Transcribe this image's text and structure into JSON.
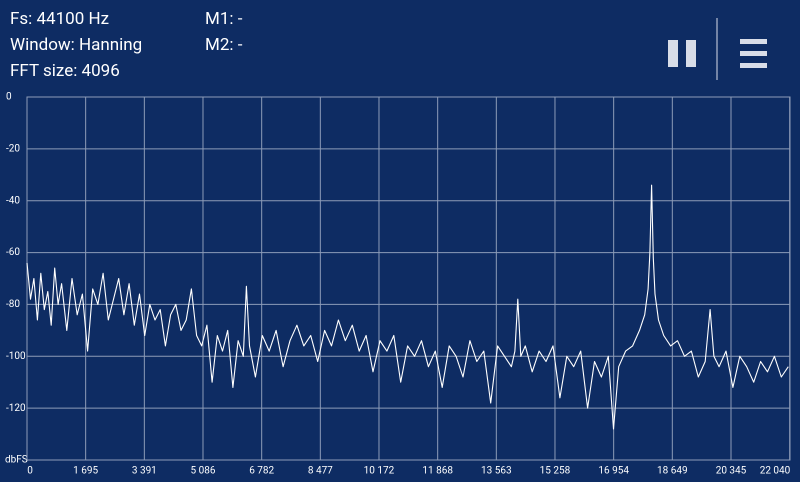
{
  "header": {
    "fs": "Fs: 44100 Hz",
    "window": "Window: Hanning",
    "fft_size": "FFT size: 4096",
    "m1": "M1: -",
    "m2": "M2: -"
  },
  "chart_data": {
    "type": "line",
    "ylabel": "dbFS",
    "color": "#ffffff",
    "grid": true,
    "xlim": [
      0,
      22050
    ],
    "ylim": [
      -140,
      0
    ],
    "xticks": [
      0,
      {
        "value": 1695,
        "label": "1 695"
      },
      {
        "value": 3391,
        "label": "3 391"
      },
      {
        "value": 5086,
        "label": "5 086"
      },
      {
        "value": 6782,
        "label": "6 782"
      },
      {
        "value": 8477,
        "label": "8 477"
      },
      {
        "value": 10172,
        "label": "10 172"
      },
      {
        "value": 11868,
        "label": "11 868"
      },
      {
        "value": 13563,
        "label": "13 563"
      },
      {
        "value": 15258,
        "label": "15 258"
      },
      {
        "value": 16954,
        "label": "16 954"
      },
      {
        "value": 18649,
        "label": "18 649"
      },
      {
        "value": 20345,
        "label": "20 345"
      },
      {
        "value": 22040,
        "label": "22 040"
      }
    ],
    "yticks": [
      0,
      -20,
      -40,
      -60,
      -80,
      -100,
      -120
    ],
    "x": [
      0,
      100,
      200,
      300,
      400,
      500,
      600,
      700,
      800,
      900,
      1000,
      1150,
      1300,
      1450,
      1600,
      1750,
      1900,
      2050,
      2200,
      2350,
      2500,
      2650,
      2800,
      2950,
      3100,
      3250,
      3400,
      3550,
      3700,
      3850,
      4000,
      4150,
      4300,
      4450,
      4600,
      4750,
      4900,
      5050,
      5200,
      5350,
      5500,
      5650,
      5800,
      5950,
      6100,
      6250,
      6340,
      6430,
      6600,
      6800,
      7000,
      7200,
      7400,
      7600,
      7800,
      8000,
      8200,
      8400,
      8600,
      8800,
      9000,
      9200,
      9400,
      9600,
      9800,
      10000,
      10200,
      10400,
      10600,
      10800,
      11000,
      11200,
      11400,
      11600,
      11800,
      12000,
      12200,
      12400,
      12600,
      12800,
      13000,
      13200,
      13400,
      13600,
      13800,
      14000,
      14100,
      14185,
      14270,
      14400,
      14600,
      14800,
      15000,
      15200,
      15400,
      15600,
      15800,
      16000,
      16200,
      16400,
      16600,
      16800,
      16950,
      17100,
      17300,
      17500,
      17700,
      17850,
      17950,
      18000,
      18050,
      18100,
      18150,
      18250,
      18400,
      18600,
      18800,
      19000,
      19200,
      19400,
      19600,
      19740,
      19850,
      20000,
      20200,
      20400,
      20600,
      20800,
      21000,
      21200,
      21400,
      21600,
      21800,
      22000
    ],
    "values": [
      -64,
      -78,
      -70,
      -86,
      -68,
      -82,
      -75,
      -88,
      -66,
      -80,
      -72,
      -90,
      -70,
      -84,
      -76,
      -98,
      -74,
      -80,
      -68,
      -86,
      -78,
      -70,
      -84,
      -72,
      -88,
      -76,
      -92,
      -80,
      -86,
      -82,
      -96,
      -84,
      -80,
      -90,
      -86,
      -74,
      -92,
      -96,
      -88,
      -110,
      -92,
      -98,
      -90,
      -112,
      -94,
      -100,
      -73,
      -96,
      -108,
      -92,
      -98,
      -90,
      -104,
      -94,
      -88,
      -96,
      -92,
      -102,
      -90,
      -96,
      -86,
      -94,
      -88,
      -98,
      -92,
      -106,
      -94,
      -98,
      -92,
      -110,
      -96,
      -100,
      -94,
      -104,
      -98,
      -112,
      -96,
      -100,
      -108,
      -94,
      -102,
      -98,
      -118,
      -96,
      -100,
      -104,
      -98,
      -78,
      -100,
      -96,
      -106,
      -98,
      -102,
      -96,
      -116,
      -100,
      -104,
      -98,
      -120,
      -102,
      -108,
      -100,
      -128,
      -104,
      -98,
      -96,
      -90,
      -84,
      -74,
      -60,
      -34,
      -62,
      -76,
      -86,
      -92,
      -96,
      -94,
      -100,
      -98,
      -108,
      -102,
      -82,
      -100,
      -104,
      -98,
      -112,
      -100,
      -104,
      -110,
      -102,
      -106,
      -100,
      -108,
      -104
    ]
  }
}
